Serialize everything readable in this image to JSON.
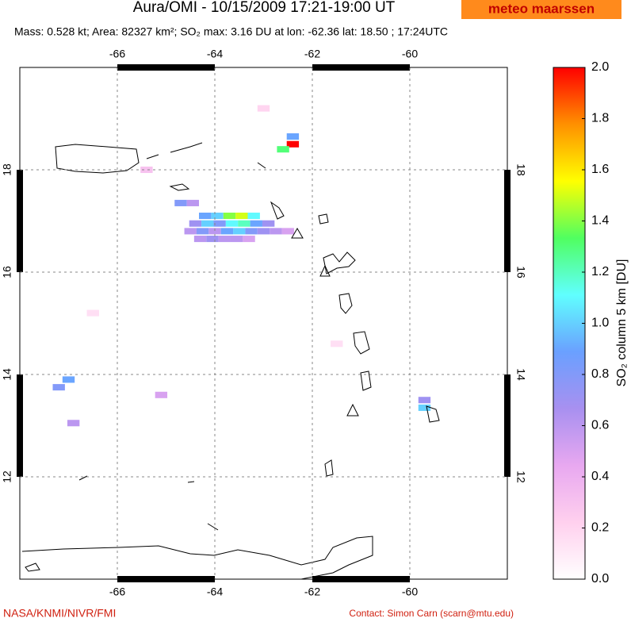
{
  "chart_data": {
    "type": "map",
    "title": "Aura/OMI - 10/15/2009 17:21-19:00 UT",
    "subtitle": "Mass: 0.528 kt; Area: 82327 km²; SO₂ max: 3.16 DU at lon: -62.36 lat: 18.50 ; 17:24UTC",
    "logo": "meteo maarssen",
    "credit": "NASA/KNMI/NIVR/FMI",
    "contact": "Contact: Simon Carn (scarn@mtu.edu)",
    "xlim": [
      -68,
      -58
    ],
    "ylim": [
      10,
      20
    ],
    "xticks": [
      -66,
      -64,
      -62,
      -60
    ],
    "yticks": [
      12,
      14,
      16,
      18
    ],
    "grid": true,
    "colorbar": {
      "label": "SO₂ column 5 km [DU]",
      "lim": [
        0,
        2
      ],
      "ticks": [
        {
          "value": 0,
          "label": "0.0"
        },
        0.2,
        0.4,
        0.6,
        0.8,
        {
          "value": 1,
          "label": "1.0"
        },
        1.2,
        1.4,
        1.6,
        1.8,
        {
          "value": 2,
          "label": "2.0"
        }
      ],
      "colormap": [
        "#ffffff",
        "#ffd0ee",
        "#e8a8f0",
        "#a890f0",
        "#6aa0ff",
        "#60ffff",
        "#50ff60",
        "#ffff00",
        "#ff9000",
        "#ff0000"
      ]
    },
    "cells": {
      "lon": [
        -62.4,
        -62.6,
        -62.4,
        -64.2,
        -63.95,
        -63.7,
        -63.45,
        -63.2,
        -64.4,
        -64.15,
        -63.9,
        -63.65,
        -63.4,
        -63.15,
        -62.9,
        -64.5,
        -64.25,
        -64.0,
        -63.75,
        -63.5,
        -63.25,
        -63.0,
        -62.75,
        -62.5,
        -64.3,
        -64.05,
        -63.8,
        -63.55,
        -63.3,
        -64.7,
        -64.45,
        -59.7,
        -59.7,
        -67.0,
        -67.2,
        -66.9,
        -65.1,
        -65.4,
        -66.5,
        -61.5,
        -63.0
      ],
      "lat": [
        18.5,
        18.4,
        18.65,
        17.1,
        17.1,
        17.1,
        17.1,
        17.1,
        16.95,
        16.95,
        16.95,
        16.95,
        16.95,
        16.95,
        16.95,
        16.8,
        16.8,
        16.8,
        16.8,
        16.8,
        16.8,
        16.8,
        16.8,
        16.8,
        16.65,
        16.65,
        16.65,
        16.65,
        16.65,
        17.35,
        17.35,
        13.5,
        13.35,
        13.9,
        13.75,
        13.05,
        13.6,
        18.0,
        15.2,
        14.6,
        19.2
      ],
      "values": [
        3.16,
        1.3,
        0.9,
        0.9,
        1.0,
        1.4,
        1.5,
        1.1,
        0.7,
        1.0,
        0.8,
        1.1,
        1.2,
        0.9,
        0.7,
        0.6,
        0.8,
        0.6,
        0.9,
        1.0,
        0.8,
        0.7,
        0.6,
        0.5,
        0.6,
        0.7,
        0.6,
        0.6,
        0.5,
        0.8,
        0.6,
        0.7,
        1.0,
        0.9,
        0.8,
        0.6,
        0.5,
        0.3,
        0.15,
        0.15,
        0.2
      ]
    }
  }
}
